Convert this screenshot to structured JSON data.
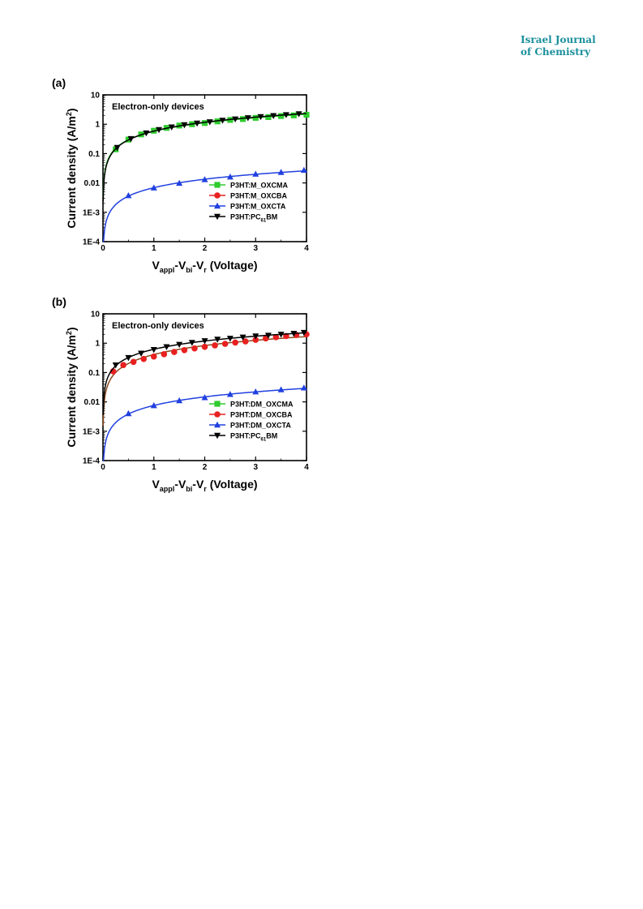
{
  "journal": {
    "line1": "Israel Journal",
    "line2": "of Chemistry"
  },
  "colors": {
    "journal": "#1a8f9c",
    "green": "#2ecc2e",
    "red": "#e82020",
    "blue": "#2040e0",
    "black": "#000000",
    "brown": "#8b4a1c"
  },
  "chart_data": [
    {
      "type": "scatter",
      "panel_label": "(a)",
      "annotation": "Electron-only devices",
      "ylabel": "Current density (A/m²)",
      "xlabel": "Vappl-Vbi-Vr (Voltage)",
      "xlim": [
        0,
        4
      ],
      "ylim": [
        0.0001,
        10
      ],
      "yscale": "log",
      "xticks": [
        "0",
        "1",
        "2",
        "3",
        "4"
      ],
      "yticks": [
        "1E-4",
        "1E-3",
        "0.01",
        "0.1",
        "1",
        "10"
      ],
      "legend_position": "bottom-right",
      "series": [
        {
          "name": "P3HT:M_OXCMA",
          "marker": "square",
          "color": "#2ecc2e",
          "x": [
            0.25,
            0.5,
            0.75,
            1.0,
            1.25,
            1.5,
            1.75,
            2.0,
            2.25,
            2.5,
            2.75,
            3.0,
            3.25,
            3.5,
            3.75,
            4.0
          ],
          "y": [
            0.14,
            0.3,
            0.45,
            0.6,
            0.75,
            0.9,
            1.0,
            1.1,
            1.25,
            1.4,
            1.5,
            1.65,
            1.75,
            1.9,
            2.0,
            2.1
          ]
        },
        {
          "name": "P3HT:M_OXCBA",
          "marker": "circle",
          "color": "#e82020",
          "x": [],
          "y": []
        },
        {
          "name": "P3HT:M_OXCTA",
          "marker": "triangle-up",
          "color": "#2040e0",
          "x": [
            0.5,
            1.0,
            1.5,
            2.0,
            2.5,
            3.0,
            3.5,
            3.95
          ],
          "y": [
            0.0037,
            0.0068,
            0.0098,
            0.013,
            0.016,
            0.02,
            0.023,
            0.027
          ]
        },
        {
          "name": "P3HT:PC61BM",
          "marker": "triangle-down",
          "color": "#000000",
          "x": [
            0.28,
            0.55,
            0.85,
            1.1,
            1.35,
            1.6,
            1.85,
            2.1,
            2.35,
            2.6,
            2.85,
            3.1,
            3.35,
            3.6,
            3.85
          ],
          "y": [
            0.16,
            0.32,
            0.5,
            0.65,
            0.8,
            0.95,
            1.08,
            1.2,
            1.35,
            1.5,
            1.65,
            1.8,
            1.95,
            2.1,
            2.25
          ]
        }
      ]
    },
    {
      "type": "scatter",
      "panel_label": "(b)",
      "annotation": "Electron-only devices",
      "ylabel": "Current density (A/m²)",
      "xlabel": "Vappl-Vbi-Vr (Voltage)",
      "xlim": [
        0,
        4
      ],
      "ylim": [
        0.0001,
        10
      ],
      "yscale": "log",
      "xticks": [
        "0",
        "1",
        "2",
        "3",
        "4"
      ],
      "yticks": [
        "1E-4",
        "1E-3",
        "0.01",
        "0.1",
        "1",
        "10"
      ],
      "legend_position": "bottom-right",
      "series": [
        {
          "name": "P3HT:DM_OXCMA",
          "marker": "square",
          "color": "#2ecc2e",
          "x": [],
          "y": []
        },
        {
          "name": "P3HT:DM_OXCBA",
          "marker": "circle",
          "color": "#e82020",
          "x": [
            0.2,
            0.4,
            0.6,
            0.8,
            1.0,
            1.2,
            1.4,
            1.6,
            1.8,
            2.0,
            2.2,
            2.4,
            2.6,
            2.8,
            3.0,
            3.2,
            3.4,
            3.6,
            3.8,
            4.0
          ],
          "y": [
            0.11,
            0.18,
            0.23,
            0.29,
            0.35,
            0.42,
            0.5,
            0.58,
            0.66,
            0.75,
            0.84,
            0.95,
            1.05,
            1.15,
            1.3,
            1.45,
            1.6,
            1.75,
            1.9,
            2.0
          ]
        },
        {
          "name": "P3HT:DM_OXCTA",
          "marker": "triangle-up",
          "color": "#2040e0",
          "x": [
            0.5,
            1.0,
            1.5,
            2.0,
            2.5,
            3.0,
            3.5,
            3.95
          ],
          "y": [
            0.004,
            0.0075,
            0.011,
            0.014,
            0.018,
            0.022,
            0.026,
            0.03
          ]
        },
        {
          "name": "P3HT:PC61BM",
          "marker": "triangle-down",
          "color": "#000000",
          "x": [
            0.25,
            0.5,
            0.75,
            1.0,
            1.25,
            1.5,
            1.75,
            2.0,
            2.25,
            2.5,
            2.75,
            3.0,
            3.25,
            3.5,
            3.75,
            3.95
          ],
          "y": [
            0.18,
            0.32,
            0.45,
            0.6,
            0.75,
            0.9,
            1.05,
            1.2,
            1.35,
            1.45,
            1.6,
            1.75,
            1.85,
            2.0,
            2.15,
            2.3
          ]
        }
      ]
    }
  ]
}
